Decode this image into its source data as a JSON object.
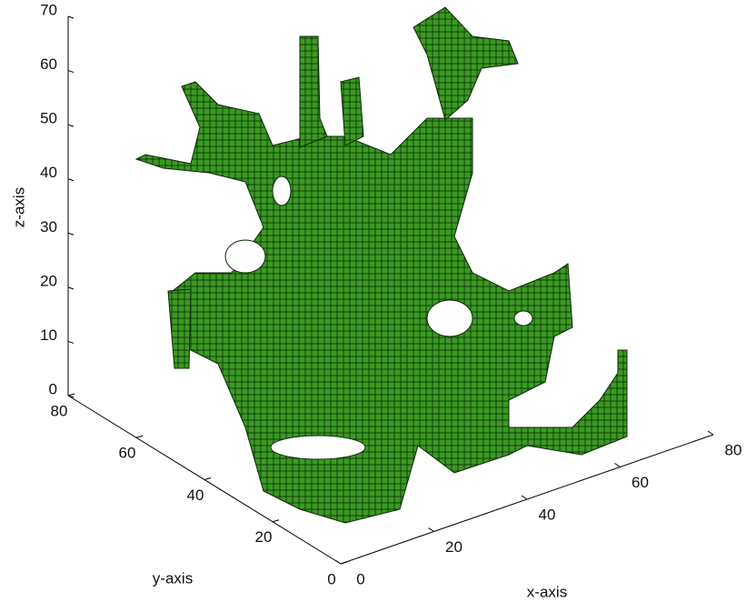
{
  "chart_data": {
    "type": "voxel3d",
    "xlabel": "x-axis",
    "ylabel": "y-axis",
    "zlabel": "z-axis",
    "xlim": [
      0,
      80
    ],
    "xticks": [
      0,
      20,
      40,
      60,
      80
    ],
    "ylim": [
      0,
      80
    ],
    "yticks": [
      0,
      20,
      40,
      60,
      80
    ],
    "zlim": [
      0,
      70
    ],
    "zticks": [
      0,
      10,
      20,
      30,
      40,
      50,
      60,
      70
    ],
    "color": "#3a9a22"
  }
}
